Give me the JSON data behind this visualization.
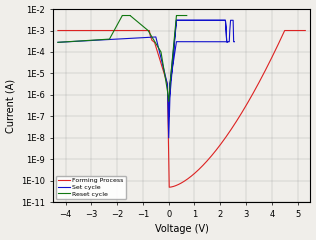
{
  "title": "",
  "xlabel": "Voltage (V)",
  "ylabel": "Current (A)",
  "xlim": [
    -4.5,
    5.5
  ],
  "ylim_log": [
    -11,
    -2
  ],
  "background_color": "#f0eeea",
  "forming_color": "#dd2222",
  "set_color": "#1111cc",
  "reset_color": "#117711",
  "legend_labels": [
    "Forming Process",
    "Set cycle",
    "Reset cycle"
  ],
  "compliance_current": 0.001
}
